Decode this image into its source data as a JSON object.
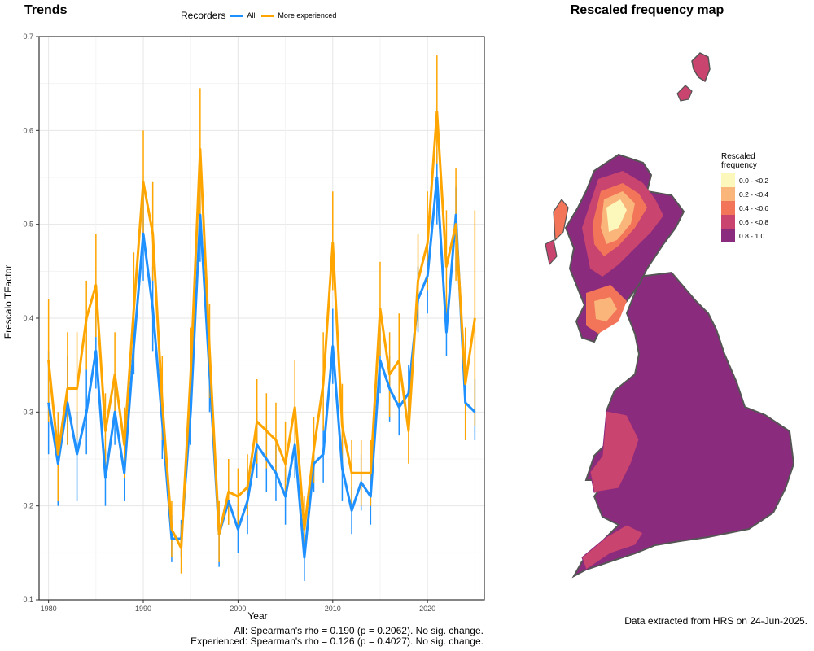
{
  "left_title": "Trends",
  "right_title": "Rescaled frequency map",
  "legend": {
    "title": "Recorders",
    "items": [
      {
        "label": "All",
        "color": "#1E90FF"
      },
      {
        "label": "More experienced",
        "color": "#FFA500"
      }
    ]
  },
  "stats": {
    "all": "All: Spearman's rho = 0.190 (p = 0.2062). No sig. change.",
    "experienced": "Experienced: Spearman's rho = 0.126 (p = 0.4027). No sig. change."
  },
  "extract_note": "Data extracted from HRS on 24-Jun-2025.",
  "chart_data": {
    "type": "line",
    "title": "Trends",
    "xlabel": "Year",
    "ylabel": "Frescalo TFactor",
    "xlim": [
      1979,
      2026
    ],
    "ylim": [
      0.1,
      0.7
    ],
    "xticks": [
      1980,
      1990,
      2000,
      2010,
      2020
    ],
    "yticks": [
      0.1,
      0.2,
      0.3,
      0.4,
      0.5,
      0.6,
      0.7
    ],
    "grid": true,
    "legend_position": "top",
    "x": [
      1980,
      1981,
      1982,
      1983,
      1984,
      1985,
      1986,
      1987,
      1988,
      1989,
      1990,
      1991,
      1992,
      1993,
      1994,
      1995,
      1996,
      1997,
      1998,
      1999,
      2000,
      2001,
      2002,
      2003,
      2004,
      2005,
      2006,
      2007,
      2008,
      2009,
      2010,
      2011,
      2012,
      2013,
      2014,
      2015,
      2016,
      2017,
      2018,
      2019,
      2020,
      2021,
      2022,
      2023,
      2024,
      2025
    ],
    "series": [
      {
        "name": "All",
        "color": "#1E90FF",
        "values": [
          0.31,
          0.245,
          0.31,
          0.255,
          0.3,
          0.365,
          0.23,
          0.3,
          0.235,
          0.37,
          0.49,
          0.41,
          0.29,
          0.165,
          0.165,
          0.3,
          0.51,
          0.34,
          0.17,
          0.205,
          0.175,
          0.205,
          0.265,
          0.25,
          0.235,
          0.21,
          0.265,
          0.145,
          0.245,
          0.255,
          0.37,
          0.24,
          0.195,
          0.225,
          0.21,
          0.355,
          0.325,
          0.305,
          0.32,
          0.42,
          0.445,
          0.55,
          0.385,
          0.51,
          0.31,
          0.3
        ],
        "lower": [
          0.255,
          0.2,
          0.265,
          0.205,
          0.255,
          0.325,
          0.2,
          0.265,
          0.205,
          0.34,
          0.44,
          0.365,
          0.25,
          0.14,
          0.145,
          0.265,
          0.46,
          0.3,
          0.135,
          0.18,
          0.15,
          0.17,
          0.23,
          0.215,
          0.205,
          0.18,
          0.23,
          0.12,
          0.215,
          0.225,
          0.33,
          0.205,
          0.17,
          0.195,
          0.18,
          0.32,
          0.29,
          0.275,
          0.29,
          0.385,
          0.405,
          0.5,
          0.36,
          0.45,
          0.27,
          0.27
        ],
        "upper": [
          0.365,
          0.29,
          0.36,
          0.3,
          0.345,
          0.405,
          0.26,
          0.335,
          0.265,
          0.4,
          0.54,
          0.455,
          0.33,
          0.19,
          0.185,
          0.335,
          0.56,
          0.375,
          0.205,
          0.23,
          0.2,
          0.24,
          0.3,
          0.285,
          0.265,
          0.24,
          0.3,
          0.17,
          0.275,
          0.285,
          0.41,
          0.275,
          0.22,
          0.255,
          0.24,
          0.39,
          0.36,
          0.335,
          0.35,
          0.455,
          0.485,
          0.58,
          0.41,
          0.54,
          0.35,
          0.335
        ]
      },
      {
        "name": "More experienced",
        "color": "#FFA500",
        "values": [
          0.355,
          0.255,
          0.325,
          0.325,
          0.4,
          0.435,
          0.28,
          0.34,
          0.265,
          0.41,
          0.545,
          0.49,
          0.31,
          0.175,
          0.155,
          0.34,
          0.58,
          0.365,
          0.17,
          0.215,
          0.21,
          0.22,
          0.29,
          0.28,
          0.27,
          0.245,
          0.305,
          0.175,
          0.26,
          0.33,
          0.48,
          0.285,
          0.235,
          0.235,
          0.235,
          0.41,
          0.34,
          0.355,
          0.28,
          0.44,
          0.48,
          0.62,
          0.455,
          0.5,
          0.33,
          0.4
        ],
        "lower": [
          0.29,
          0.205,
          0.265,
          0.27,
          0.345,
          0.38,
          0.24,
          0.3,
          0.23,
          0.355,
          0.49,
          0.44,
          0.27,
          0.145,
          0.128,
          0.295,
          0.51,
          0.315,
          0.14,
          0.18,
          0.18,
          0.19,
          0.245,
          0.24,
          0.235,
          0.21,
          0.26,
          0.145,
          0.225,
          0.28,
          0.43,
          0.245,
          0.2,
          0.2,
          0.2,
          0.36,
          0.295,
          0.31,
          0.245,
          0.39,
          0.43,
          0.565,
          0.4,
          0.44,
          0.27,
          0.285
        ],
        "upper": [
          0.42,
          0.3,
          0.385,
          0.385,
          0.44,
          0.49,
          0.32,
          0.385,
          0.305,
          0.47,
          0.6,
          0.545,
          0.36,
          0.205,
          0.18,
          0.39,
          0.645,
          0.415,
          0.205,
          0.25,
          0.24,
          0.255,
          0.335,
          0.32,
          0.31,
          0.29,
          0.355,
          0.21,
          0.295,
          0.385,
          0.535,
          0.33,
          0.27,
          0.27,
          0.27,
          0.46,
          0.385,
          0.405,
          0.32,
          0.49,
          0.535,
          0.68,
          0.515,
          0.56,
          0.39,
          0.515
        ]
      }
    ]
  },
  "map": {
    "legend_title_line1": "Rescaled",
    "legend_title_line2": "frequency",
    "classes": [
      {
        "label": "0.0 - <0.2",
        "color": "#FCF8BC"
      },
      {
        "label": "0.2 - <0.4",
        "color": "#FAB57B"
      },
      {
        "label": "0.4 - <0.6",
        "color": "#F2755A"
      },
      {
        "label": "0.6 - <0.8",
        "color": "#C9446E"
      },
      {
        "label": "0.8 - 1.0",
        "color": "#8B2B7E"
      }
    ]
  }
}
